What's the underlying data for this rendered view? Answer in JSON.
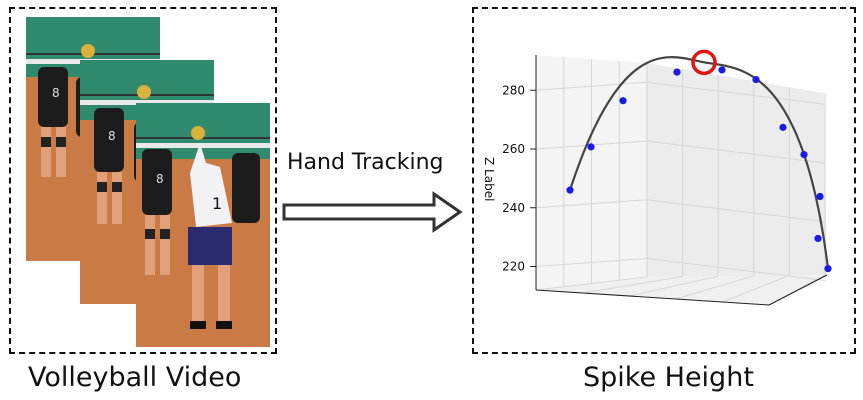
{
  "captions": {
    "video": "Volleyball Video",
    "spike": "Spike Height"
  },
  "arrow": {
    "label": "Hand Tracking"
  },
  "frames": [
    {
      "name": "frame-back"
    },
    {
      "name": "frame-middle"
    },
    {
      "name": "frame-front"
    }
  ],
  "chart_data": {
    "type": "line",
    "projection": "3d",
    "zlabel": "Z Label",
    "z_ticks": [
      220,
      240,
      260,
      280
    ],
    "zlim": [
      212,
      292
    ],
    "points_z": [
      246,
      261,
      277,
      287,
      288,
      285,
      269,
      260,
      246,
      232,
      222
    ],
    "peak_z": 289.5,
    "colors": {
      "points": "#1a1ae6",
      "curve": "#444444",
      "peak_marker": "#e31212"
    }
  }
}
